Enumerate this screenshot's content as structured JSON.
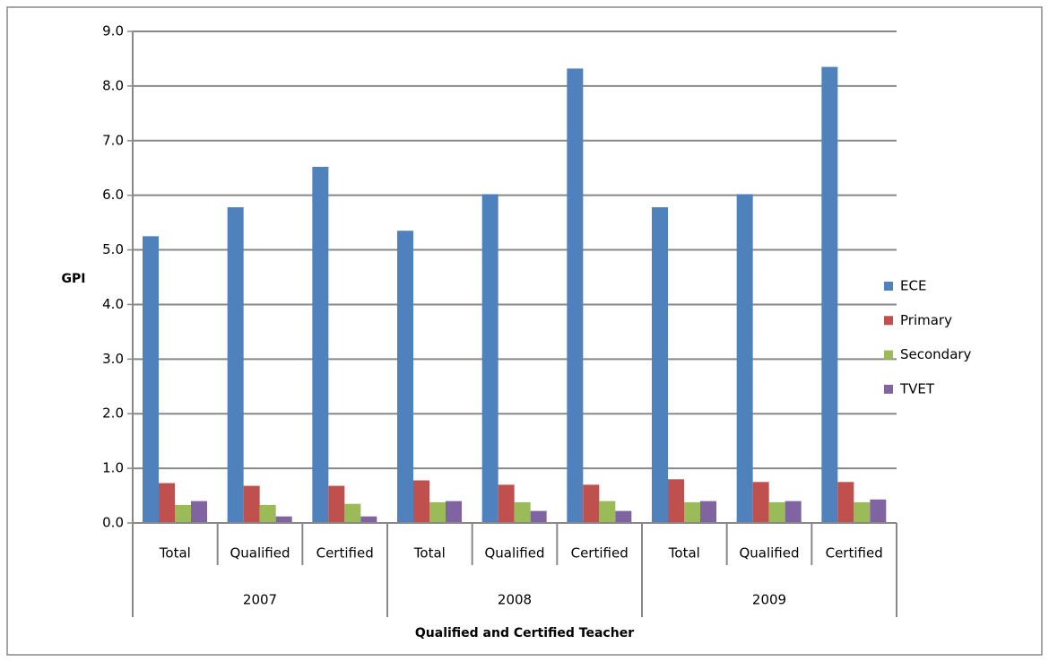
{
  "chart_data": {
    "type": "bar",
    "y_axis_label": "GPI",
    "x_axis_label": "Qualified and Certified Teacher",
    "categories": [
      "Total",
      "Qualified",
      "Certified",
      "Total",
      "Qualified",
      "Certified",
      "Total",
      "Qualified",
      "Certified"
    ],
    "groups": [
      "2007",
      "2008",
      "2009"
    ],
    "series": [
      {
        "name": "ECE",
        "color": "#4f81bd",
        "values": [
          5.25,
          5.78,
          6.52,
          5.35,
          6.02,
          8.32,
          5.78,
          6.02,
          8.35
        ]
      },
      {
        "name": "Primary",
        "color": "#c0504d",
        "values": [
          0.73,
          0.68,
          0.68,
          0.78,
          0.7,
          0.7,
          0.8,
          0.75,
          0.75
        ]
      },
      {
        "name": "Secondary",
        "color": "#9bbb59",
        "values": [
          0.33,
          0.33,
          0.35,
          0.38,
          0.38,
          0.4,
          0.38,
          0.38,
          0.38
        ]
      },
      {
        "name": "TVET",
        "color": "#8064a2",
        "values": [
          0.4,
          0.12,
          0.12,
          0.4,
          0.22,
          0.22,
          0.4,
          0.4,
          0.43
        ]
      }
    ],
    "ylim": [
      0,
      9
    ],
    "yticks": [
      {
        "value": 0,
        "label": "0.0"
      },
      {
        "value": 1,
        "label": "1.0"
      },
      {
        "value": 2,
        "label": "2.0"
      },
      {
        "value": 3,
        "label": "3.0"
      },
      {
        "value": 4,
        "label": "4.0"
      },
      {
        "value": 5,
        "label": "5.0"
      },
      {
        "value": 6,
        "label": "6.0"
      },
      {
        "value": 7,
        "label": "7.0"
      },
      {
        "value": 8,
        "label": "8.0"
      },
      {
        "value": 9,
        "label": "9.0"
      }
    ],
    "grid": true,
    "legend": "right"
  }
}
